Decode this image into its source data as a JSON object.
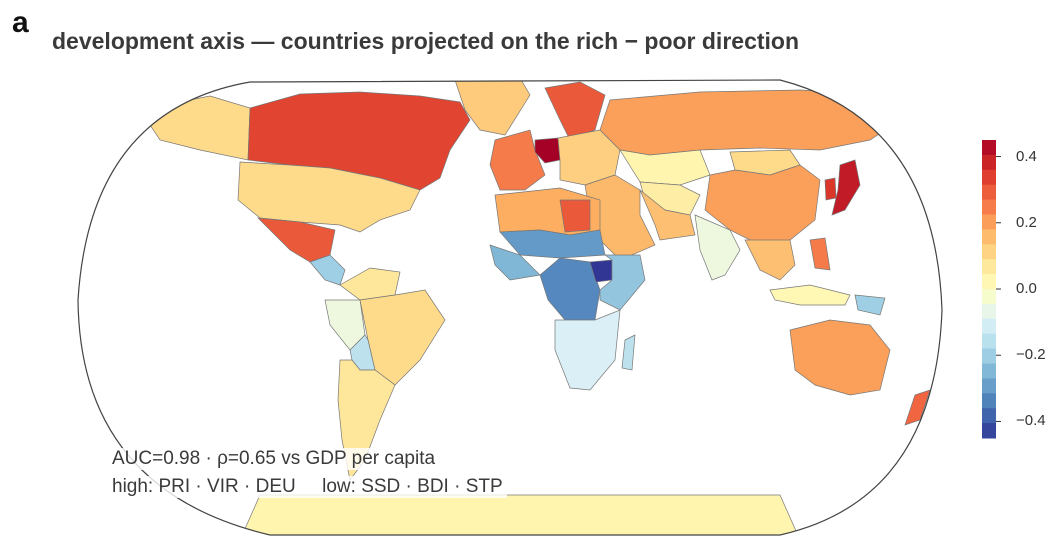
{
  "panel_label": "a",
  "title": "development axis — countries projected on the rich − poor direction",
  "annotations": {
    "line1": "AUC=0.98 · ρ=0.65 vs GDP per capita",
    "line2_high": "high: PRI · VIR · DEU",
    "line2_low": "low: SSD · BDI · STP"
  },
  "colorbar": {
    "min": -0.45,
    "max": 0.45,
    "ticks": [
      {
        "value": 0.4,
        "label": "0.4"
      },
      {
        "value": 0.2,
        "label": "0.2"
      },
      {
        "value": 0.0,
        "label": "0.0"
      },
      {
        "value": -0.2,
        "label": "−0.2"
      },
      {
        "value": -0.4,
        "label": "−0.4"
      }
    ],
    "colormap": [
      "#313695",
      "#4575b4",
      "#74add1",
      "#abd9e9",
      "#e0f3f8",
      "#ffffbf",
      "#fee090",
      "#fdae61",
      "#f46d43",
      "#d73027",
      "#a50026"
    ]
  },
  "map_values": {
    "canada": 0.33,
    "usa": 0.1,
    "alaska": 0.1,
    "greenland": 0.13,
    "mexico": 0.3,
    "central_america": -0.2,
    "colombia_venezuela": 0.07,
    "ecuador_peru": -0.05,
    "brazil": 0.1,
    "bolivia_paraguay": -0.15,
    "argentina_chile": 0.07,
    "north_africa": 0.18,
    "libya": 0.3,
    "west_africa": -0.25,
    "sahel": -0.3,
    "central_africa": -0.33,
    "south_sudan": -0.45,
    "east_africa": -0.22,
    "southern_africa": -0.1,
    "madagascar": -0.15,
    "western_europe": 0.25,
    "germany": 0.45,
    "scandinavia": 0.3,
    "eastern_europe": 0.12,
    "russia": 0.2,
    "kazakhstan": 0.03,
    "middle_east": 0.16,
    "iran": 0.15,
    "central_asia": 0.05,
    "india": -0.05,
    "china": 0.2,
    "mongolia": 0.1,
    "southeast_asia": 0.15,
    "indonesia": 0.02,
    "papua": -0.2,
    "japan": 0.4,
    "korea": 0.35,
    "philippines": 0.25,
    "australia": 0.2,
    "new_zealand": 0.28,
    "antarctica": 0.03
  }
}
